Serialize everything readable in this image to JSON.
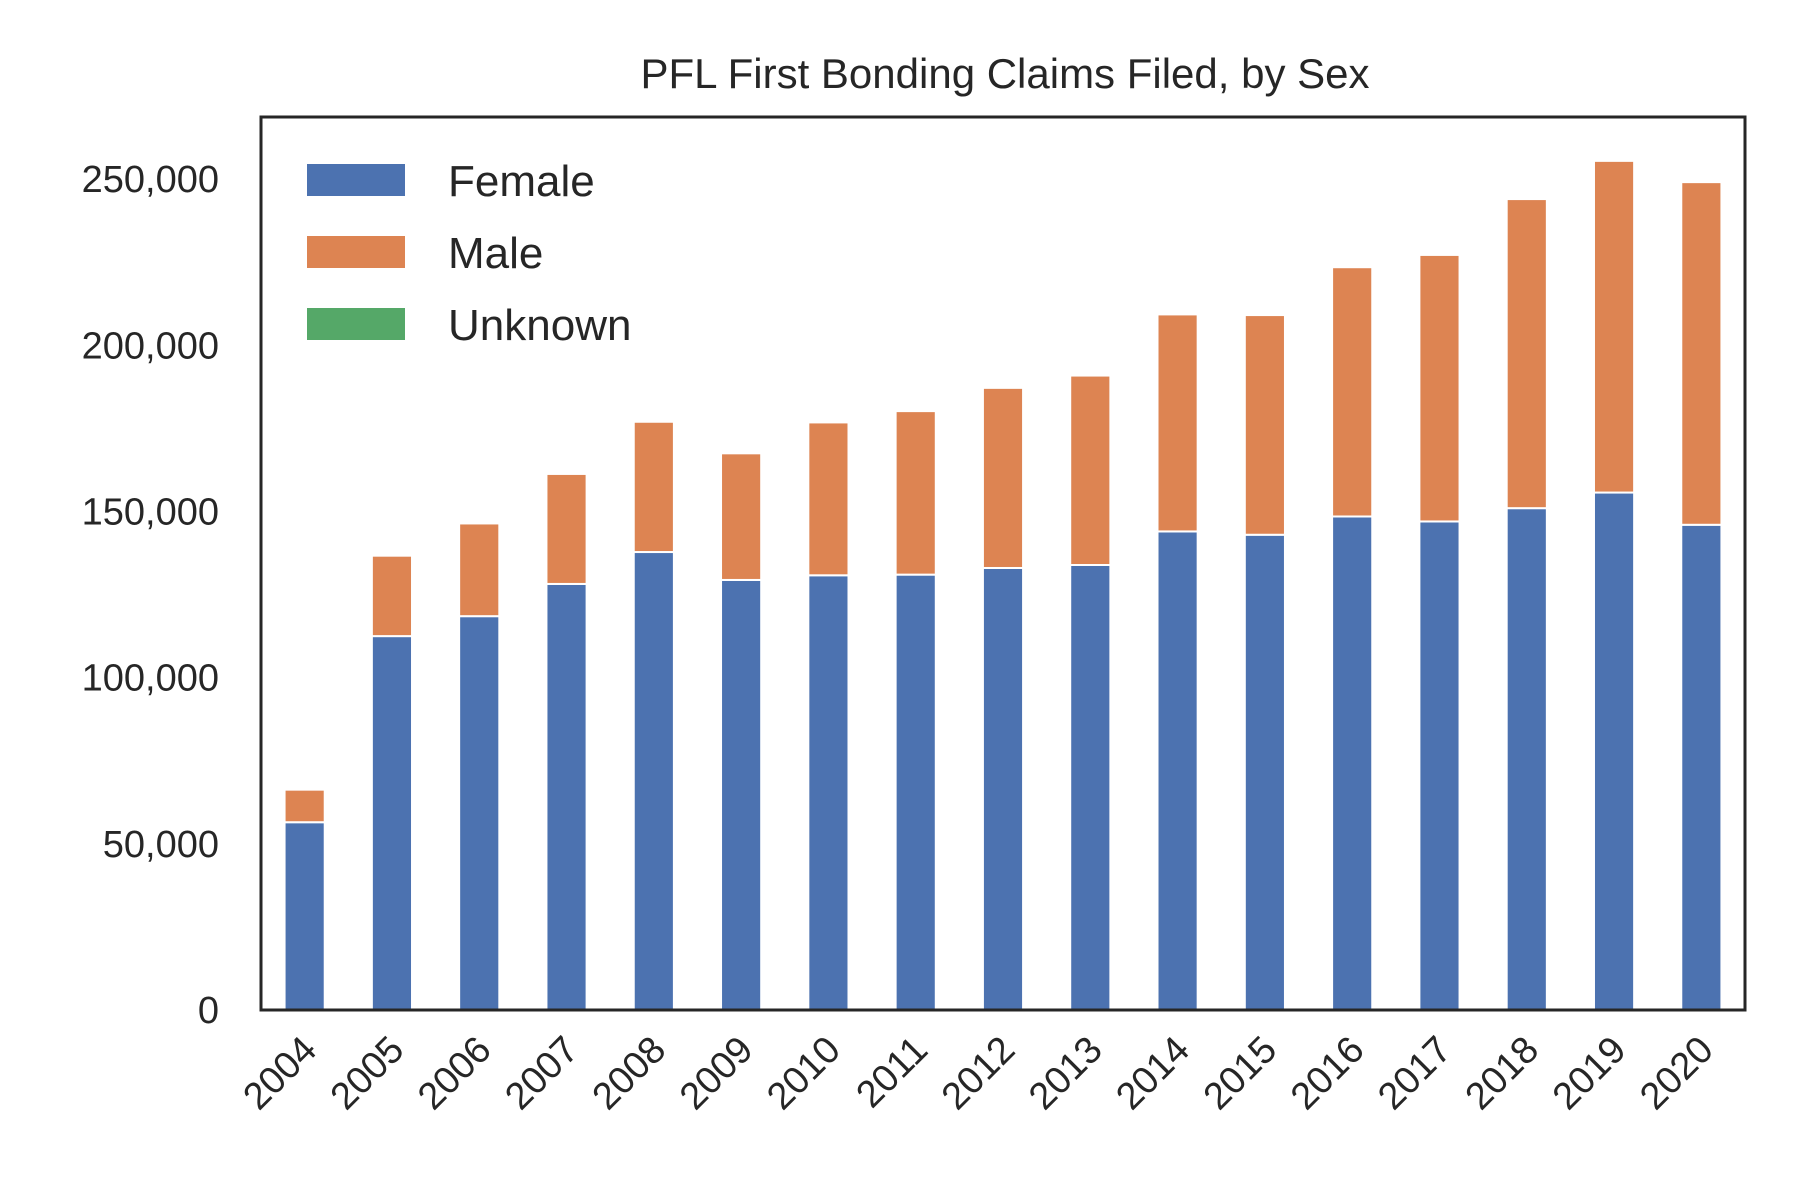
{
  "chart_data": {
    "type": "bar",
    "stacked": true,
    "title": "PFL First Bonding Claims Filed, by Sex",
    "xlabel": "",
    "ylabel": "",
    "categories": [
      "2004",
      "2005",
      "2006",
      "2007",
      "2008",
      "2009",
      "2010",
      "2011",
      "2012",
      "2013",
      "2014",
      "2015",
      "2016",
      "2017",
      "2018",
      "2019",
      "2020"
    ],
    "series": [
      {
        "name": "Female",
        "color": "#4C72B0",
        "values": [
          56500,
          112500,
          118500,
          128200,
          137800,
          129400,
          130800,
          131000,
          133000,
          133900,
          144000,
          143000,
          148500,
          147000,
          151000,
          155700,
          146000
        ]
      },
      {
        "name": "Male",
        "color": "#DD8452",
        "values": [
          9800,
          24200,
          27900,
          33100,
          39200,
          38100,
          46000,
          49200,
          54200,
          57000,
          65300,
          66100,
          75000,
          80200,
          93000,
          99800,
          103100
        ]
      },
      {
        "name": "Unknown",
        "color": "#55A868",
        "values": [
          0,
          0,
          0,
          0,
          0,
          0,
          0,
          0,
          0,
          0,
          0,
          0,
          0,
          0,
          0,
          0,
          0
        ]
      }
    ],
    "ylim": [
      0,
      268700
    ],
    "yticks": [
      0,
      50000,
      100000,
      150000,
      200000,
      250000
    ],
    "ytick_labels": [
      "0",
      "50,000",
      "100,000",
      "150,000",
      "200,000",
      "250,000"
    ],
    "grid": false,
    "legend_position": "top-left"
  }
}
